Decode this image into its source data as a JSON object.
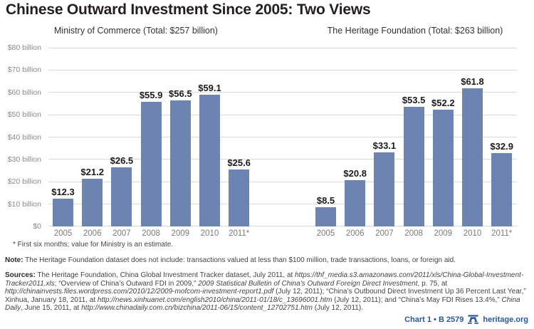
{
  "title": "Chinese Outward Investment Since 2005: Two Views",
  "colors": {
    "bar": "#6d83b2",
    "gridline": "#d9d9d9",
    "axis_label": "#8a8a8a",
    "value_label": "#1a1a1a",
    "brand_navy": "#2a5795"
  },
  "y_axis": {
    "tick_labels": [
      "$80 billion",
      "$70 billion",
      "$60 billion",
      "$50 billion",
      "$40 billion",
      "$30 billion",
      "$20 billion",
      "$10 billion",
      "$0"
    ],
    "tick_values": [
      80,
      70,
      60,
      50,
      40,
      30,
      20,
      10,
      0
    ]
  },
  "chart_data": [
    {
      "type": "bar",
      "title": "Ministry of Commerce (Total: $257 billion)",
      "categories": [
        "2005",
        "2006",
        "2007",
        "2008",
        "2009",
        "2010",
        "2011*"
      ],
      "values": [
        12.3,
        21.2,
        26.5,
        55.9,
        56.5,
        59.1,
        25.6
      ],
      "value_labels": [
        "$12.3",
        "$21.2",
        "$26.5",
        "$55.9",
        "$56.5",
        "$59.1",
        "$25.6"
      ],
      "xlabel": "",
      "ylabel": "",
      "ylim": [
        0,
        80
      ],
      "grid": true,
      "legend": "none"
    },
    {
      "type": "bar",
      "title": "The Heritage Foundation (Total: $263 billion)",
      "categories": [
        "2005",
        "2006",
        "2007",
        "2008",
        "2009",
        "2010",
        "2011*"
      ],
      "values": [
        8.5,
        20.8,
        33.1,
        53.5,
        52.2,
        61.8,
        32.9
      ],
      "value_labels": [
        "$8.5",
        "$20.8",
        "$33.1",
        "$53.5",
        "$52.2",
        "$61.8",
        "$32.9"
      ],
      "xlabel": "",
      "ylabel": "",
      "ylim": [
        0,
        80
      ],
      "grid": true,
      "legend": "none"
    }
  ],
  "footnotes": {
    "asterisk": "* First six months; value for Ministry is an estimate.",
    "note_label": "Note:",
    "note_text": " The Heritage Foundation dataset does not include: transactions valued at less than $100 million, trade transactions, loans, or foreign aid.",
    "sources_label": "Sources:",
    "sources_segments": [
      {
        "t": " The Heritage Foundation, China Global Investment Tracker dataset, July 2011, at ",
        "i": false
      },
      {
        "t": "https://thf_media.s3.amazonaws.com/2011/xls/China-Global-Investment-Tracker2011.xls",
        "i": true
      },
      {
        "t": "; “Overview of China’s Outward FDI in 2009,” ",
        "i": false
      },
      {
        "t": "2009 Statistical Bulletin of China’s Outward Foreign Direct Investment",
        "i": true
      },
      {
        "t": ", p. 75, at ",
        "i": false
      },
      {
        "t": "http://chinainvests.files.wordpress.com/2010/12/2009-mofcom-investment-report1.pdf",
        "i": true
      },
      {
        "t": " (July 12, 2011); “China’s Outbound Direct Investment Up 36 Percent Last Year,” Xinhua, January 18, 2011, at ",
        "i": false
      },
      {
        "t": "http://news.xinhuanet.com/english2010/china/2011-01/18/c_13696001.htm",
        "i": true
      },
      {
        "t": " (July 12, 2011); and “China’s May FDI Rises 13.4%,” ",
        "i": false
      },
      {
        "t": "China Daily",
        "i": true
      },
      {
        "t": ", June 15, 2011, at ",
        "i": false
      },
      {
        "t": "http://www.chinadaily.com.cn/bizchina/2011-06/15/content_12702751.htm",
        "i": true
      },
      {
        "t": " (July 12, 2011).",
        "i": false
      }
    ]
  },
  "branding": {
    "chart_label": "Chart 1 • B 2579",
    "site": "heritage.org",
    "bell_icon": "liberty-bell-icon"
  }
}
